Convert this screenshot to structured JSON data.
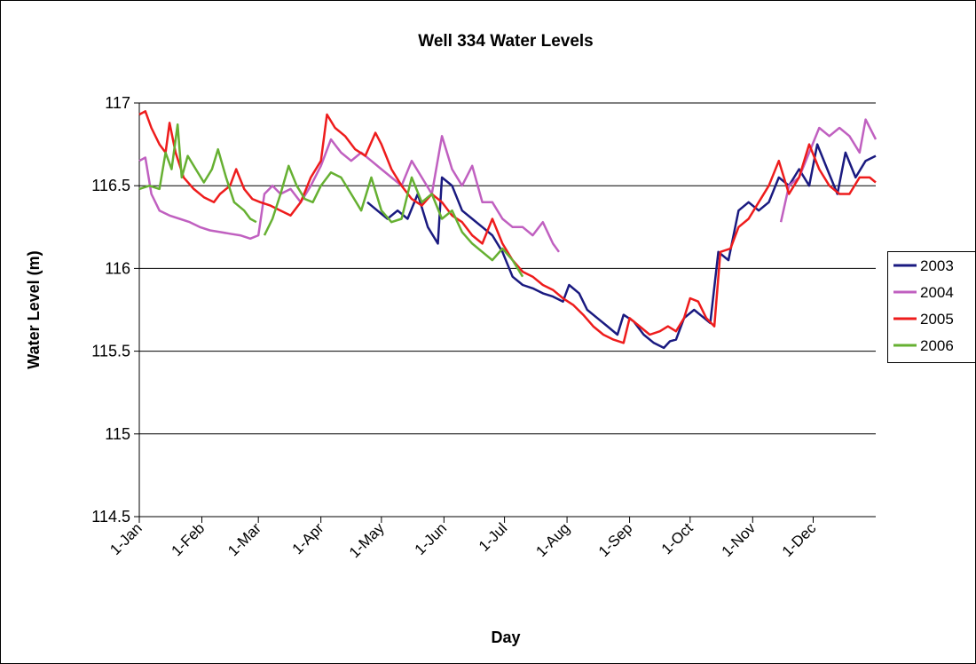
{
  "chart_data": {
    "type": "line",
    "title": "Well 334 Water Levels",
    "x_label": "Day",
    "y_label": "Water Level (m)",
    "xlim": [
      0,
      365
    ],
    "xticks": [
      {
        "value": 0,
        "label": "1-Jan"
      },
      {
        "value": 31,
        "label": "1-Feb"
      },
      {
        "value": 59,
        "label": "1-Mar"
      },
      {
        "value": 90,
        "label": "1-Apr"
      },
      {
        "value": 120,
        "label": "1-May"
      },
      {
        "value": 151,
        "label": "1-Jun"
      },
      {
        "value": 181,
        "label": "1-Jul"
      },
      {
        "value": 212,
        "label": "1-Aug"
      },
      {
        "value": 243,
        "label": "1-Sep"
      },
      {
        "value": 273,
        "label": "1-Oct"
      },
      {
        "value": 304,
        "label": "1-Nov"
      },
      {
        "value": 334,
        "label": "1-Dec"
      }
    ],
    "ylim": [
      114.5,
      117
    ],
    "yticks": [
      114.5,
      115,
      115.5,
      116,
      116.5,
      117
    ],
    "grid": true,
    "legend": "right",
    "series": [
      {
        "name": "2003",
        "color": "#1a1a80",
        "x": [
          113,
          118,
          123,
          128,
          133,
          138,
          143,
          148,
          150,
          155,
          160,
          165,
          170,
          175,
          180,
          185,
          190,
          195,
          200,
          205,
          210,
          213,
          218,
          222,
          227,
          232,
          237,
          240,
          245,
          250,
          255,
          260,
          263,
          266,
          270,
          275,
          280,
          283,
          287,
          292,
          297,
          302,
          307,
          312,
          317,
          322,
          327,
          332,
          336,
          341,
          346,
          350,
          355,
          360,
          365
        ],
        "values": [
          116.4,
          116.35,
          116.3,
          116.35,
          116.3,
          116.45,
          116.25,
          116.15,
          116.55,
          116.5,
          116.35,
          116.3,
          116.25,
          116.2,
          116.1,
          115.95,
          115.9,
          115.88,
          115.85,
          115.83,
          115.8,
          115.9,
          115.85,
          115.75,
          115.7,
          115.65,
          115.6,
          115.72,
          115.68,
          115.6,
          115.55,
          115.52,
          115.56,
          115.57,
          115.7,
          115.75,
          115.7,
          115.67,
          116.1,
          116.05,
          116.35,
          116.4,
          116.35,
          116.4,
          116.55,
          116.5,
          116.6,
          116.5,
          116.75,
          116.6,
          116.45,
          116.7,
          116.55,
          116.65,
          116.68
        ]
      },
      {
        "name": "2004",
        "color": "#c060c0",
        "x": [
          0,
          3,
          6,
          10,
          15,
          20,
          25,
          30,
          35,
          40,
          45,
          50,
          55,
          59,
          62,
          66,
          70,
          75,
          80,
          85,
          90,
          95,
          100,
          105,
          110,
          115,
          120,
          125,
          130,
          135,
          140,
          145,
          150,
          155,
          160,
          165,
          170,
          175,
          180,
          185,
          190,
          195,
          200,
          205,
          208,
          260,
          318,
          322,
          327,
          332,
          337,
          342,
          347,
          352,
          357,
          360,
          365
        ],
        "values": [
          116.65,
          116.67,
          116.45,
          116.35,
          116.32,
          116.3,
          116.28,
          116.25,
          116.23,
          116.22,
          116.21,
          116.2,
          116.18,
          116.2,
          116.45,
          116.5,
          116.45,
          116.48,
          116.4,
          116.5,
          116.62,
          116.78,
          116.7,
          116.65,
          116.7,
          116.65,
          116.6,
          116.55,
          116.5,
          116.65,
          116.55,
          116.45,
          116.8,
          116.6,
          116.5,
          116.62,
          116.4,
          116.4,
          116.3,
          116.25,
          116.25,
          116.2,
          116.28,
          116.15,
          116.1,
          null,
          116.28,
          116.5,
          116.55,
          116.7,
          116.85,
          116.8,
          116.85,
          116.8,
          116.7,
          116.9,
          116.78
        ]
      },
      {
        "name": "2005",
        "color": "#ee1c1c",
        "x": [
          0,
          3,
          6,
          10,
          13,
          15,
          18,
          22,
          27,
          32,
          37,
          40,
          45,
          48,
          52,
          56,
          60,
          65,
          70,
          75,
          80,
          85,
          90,
          93,
          97,
          102,
          107,
          112,
          117,
          120,
          125,
          130,
          135,
          140,
          145,
          150,
          155,
          160,
          165,
          170,
          175,
          180,
          185,
          190,
          195,
          200,
          205,
          210,
          215,
          220,
          225,
          230,
          235,
          240,
          243,
          248,
          253,
          258,
          262,
          266,
          270,
          273,
          277,
          281,
          285,
          288,
          293,
          297,
          302,
          307,
          312,
          317,
          322,
          327,
          332,
          337,
          342,
          347,
          352,
          357,
          362,
          365
        ],
        "values": [
          116.93,
          116.95,
          116.85,
          116.75,
          116.7,
          116.88,
          116.7,
          116.55,
          116.48,
          116.43,
          116.4,
          116.45,
          116.5,
          116.6,
          116.48,
          116.42,
          116.4,
          116.38,
          116.35,
          116.32,
          116.4,
          116.55,
          116.65,
          116.93,
          116.85,
          116.8,
          116.72,
          116.68,
          116.82,
          116.75,
          116.6,
          116.5,
          116.42,
          116.38,
          116.45,
          116.4,
          116.32,
          116.28,
          116.2,
          116.15,
          116.3,
          116.15,
          116.05,
          115.98,
          115.95,
          115.9,
          115.87,
          115.82,
          115.78,
          115.72,
          115.65,
          115.6,
          115.57,
          115.55,
          115.7,
          115.65,
          115.6,
          115.62,
          115.65,
          115.62,
          115.7,
          115.82,
          115.8,
          115.7,
          115.65,
          116.1,
          116.12,
          116.25,
          116.3,
          116.4,
          116.5,
          116.65,
          116.45,
          116.55,
          116.75,
          116.6,
          116.5,
          116.45,
          116.45,
          116.55,
          116.55,
          116.52
        ]
      },
      {
        "name": "2006",
        "color": "#66b032",
        "x": [
          0,
          5,
          10,
          13,
          16,
          19,
          21,
          24,
          28,
          32,
          36,
          39,
          43,
          47,
          52,
          55,
          58,
          60,
          62,
          66,
          70,
          74,
          78,
          82,
          86,
          90,
          95,
          100,
          105,
          110,
          115,
          120,
          125,
          130,
          135,
          140,
          145,
          150,
          155,
          160,
          165,
          170,
          175,
          180,
          185,
          190
        ],
        "values": [
          116.48,
          116.5,
          116.48,
          116.7,
          116.6,
          116.87,
          116.55,
          116.68,
          116.6,
          116.52,
          116.6,
          116.72,
          116.55,
          116.4,
          116.35,
          116.3,
          116.28,
          null,
          116.2,
          116.3,
          116.45,
          116.62,
          116.5,
          116.42,
          116.4,
          116.5,
          116.58,
          116.55,
          116.45,
          116.35,
          116.55,
          116.35,
          116.28,
          116.3,
          116.55,
          116.4,
          116.45,
          116.3,
          116.35,
          116.22,
          116.15,
          116.1,
          116.05,
          116.12,
          116.05,
          115.95
        ]
      }
    ]
  }
}
